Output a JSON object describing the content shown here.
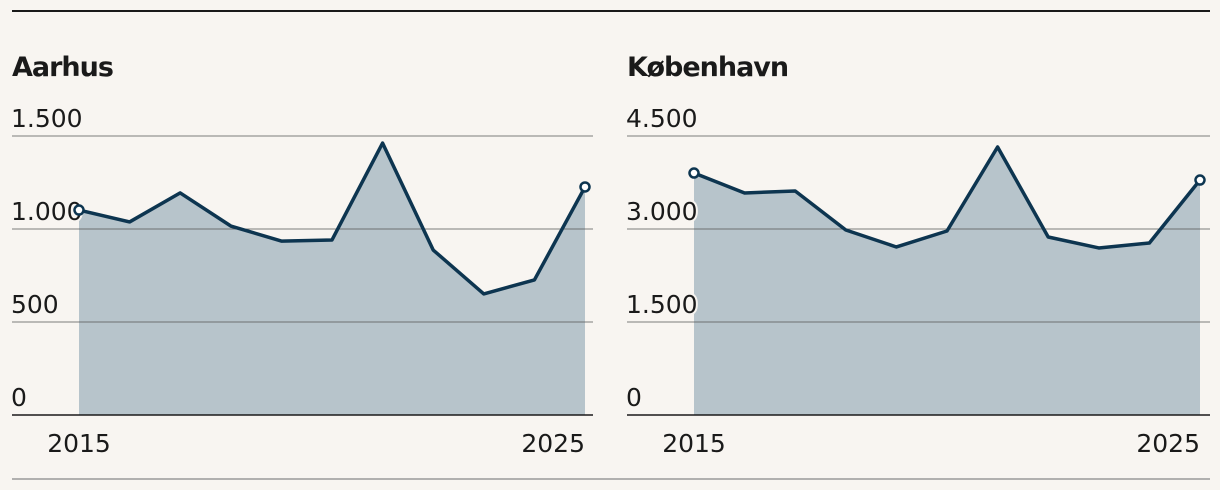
{
  "chart_data": [
    {
      "type": "area",
      "title": "Aarhus",
      "color": "#0d3550",
      "fill": "#b7c4cb",
      "x": [
        2015,
        2016,
        2017,
        2018,
        2019,
        2020,
        2021,
        2022,
        2023,
        2024,
        2025
      ],
      "values": [
        1102,
        1038,
        1194,
        1016,
        935,
        941,
        1462,
        887,
        651,
        726,
        1226
      ],
      "xlim": [
        2015,
        2025
      ],
      "xticks": [
        2015,
        2025
      ],
      "ylim": [
        0,
        1500
      ],
      "yticks": [
        0,
        500,
        {
          "value": 1000,
          "label": "1.000"
        },
        {
          "value": 1500,
          "label": "1.500"
        }
      ],
      "grid": true
    },
    {
      "type": "area",
      "title": "København",
      "color": "#0d3550",
      "fill": "#b7c4cb",
      "x": [
        2015,
        2016,
        2017,
        2018,
        2019,
        2020,
        2021,
        2022,
        2023,
        2024,
        2025
      ],
      "values": [
        3903,
        3581,
        3613,
        2984,
        2710,
        2968,
        4323,
        2871,
        2694,
        2774,
        3790
      ],
      "xlim": [
        2015,
        2025
      ],
      "xticks": [
        2015,
        2025
      ],
      "ylim": [
        0,
        4500
      ],
      "yticks": [
        0,
        {
          "value": 1500,
          "label": "1.500"
        },
        {
          "value": 3000,
          "label": "3.000"
        },
        {
          "value": 4500,
          "label": "4.500"
        }
      ],
      "grid": true
    }
  ]
}
